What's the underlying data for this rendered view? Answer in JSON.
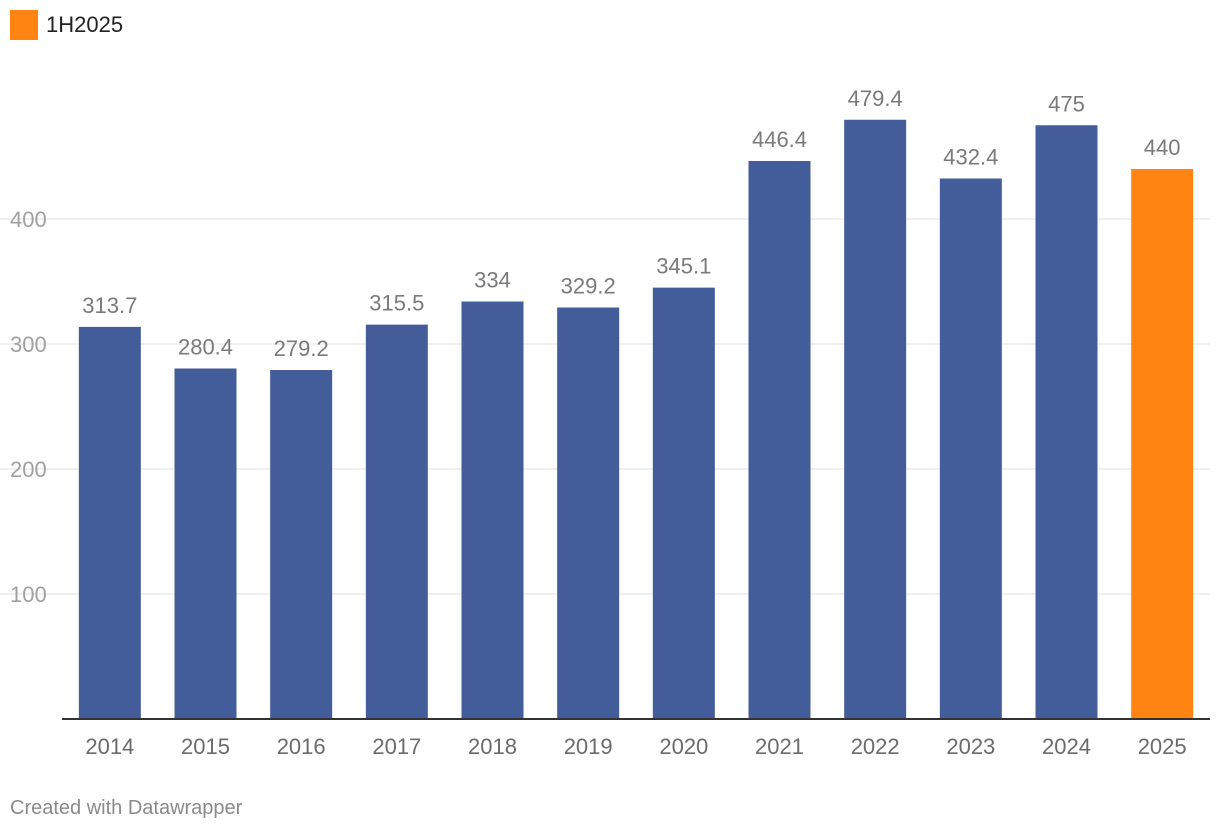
{
  "legend": {
    "label": "1H2025",
    "color": "#ff8411"
  },
  "footer": {
    "credit": "Created with Datawrapper"
  },
  "colors": {
    "default_bar": "#425d99",
    "highlight_bar": "#ff8411",
    "grid": "#e2e2e2",
    "baseline": "#333333"
  },
  "chart_data": {
    "type": "bar",
    "categories": [
      "2014",
      "2015",
      "2016",
      "2017",
      "2018",
      "2019",
      "2020",
      "2021",
      "2022",
      "2023",
      "2024",
      "2025"
    ],
    "values": [
      313.7,
      280.4,
      279.2,
      315.5,
      334,
      329.2,
      345.1,
      446.4,
      479.4,
      432.4,
      475,
      440
    ],
    "value_labels": [
      "313.7",
      "280.4",
      "279.2",
      "315.5",
      "334",
      "329.2",
      "345.1",
      "446.4",
      "479.4",
      "432.4",
      "475",
      "440"
    ],
    "highlight_categories": [
      "2025"
    ],
    "ylim": [
      0,
      500
    ],
    "yticks": [
      100,
      200,
      300,
      400
    ],
    "grid": true,
    "legend_position": "top-left",
    "title": "",
    "xlabel": "",
    "ylabel": ""
  }
}
